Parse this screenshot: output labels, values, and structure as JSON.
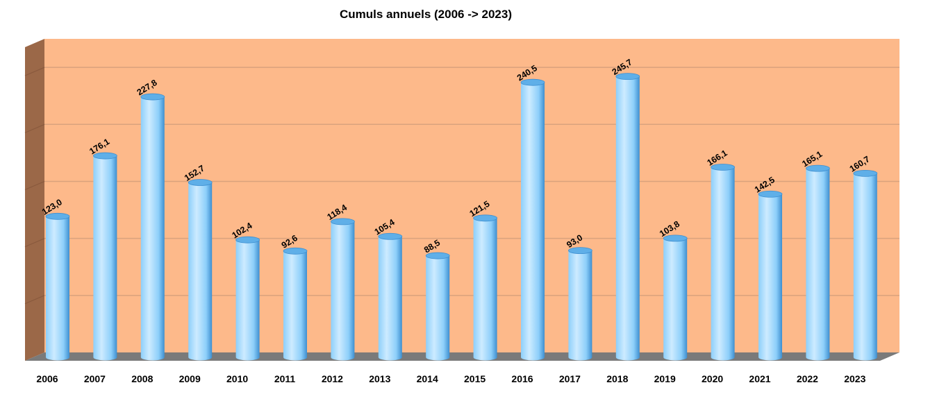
{
  "chart_data": {
    "type": "bar",
    "style": "3d-cylinder",
    "title": "Cumuls annuels (2006 -> 2023)",
    "xlabel": "",
    "ylabel": "",
    "categories": [
      "2006",
      "2007",
      "2008",
      "2009",
      "2010",
      "2011",
      "2012",
      "2013",
      "2014",
      "2015",
      "2016",
      "2017",
      "2018",
      "2019",
      "2020",
      "2021",
      "2022",
      "2023"
    ],
    "values": [
      123.0,
      176.1,
      227.8,
      152.7,
      102.4,
      92.6,
      118.4,
      105.4,
      88.5,
      121.5,
      240.5,
      93.0,
      245.7,
      103.8,
      166.1,
      142.5,
      165.1,
      160.7
    ],
    "data_labels": [
      "123,0",
      "176,1",
      "227,8",
      "152,7",
      "102,4",
      "92,6",
      "118,4",
      "105,4",
      "88,5",
      "121,5",
      "240,5",
      "93,0",
      "245,7",
      "103,8",
      "166,1",
      "142,5",
      "165,1",
      "160,7"
    ],
    "ylim": [
      0,
      275
    ],
    "grid": true,
    "y_axis_labels_shown": false,
    "legend": "none",
    "colors": {
      "plot_background": "#FDB98A",
      "side_wall": "#9B6848",
      "floor": "#7A7A7A",
      "gridline": "#D9A27D",
      "bar_light": "#CDEBFF",
      "bar_mid": "#8DCFFA",
      "bar_dark": "#3E8FD0"
    }
  }
}
